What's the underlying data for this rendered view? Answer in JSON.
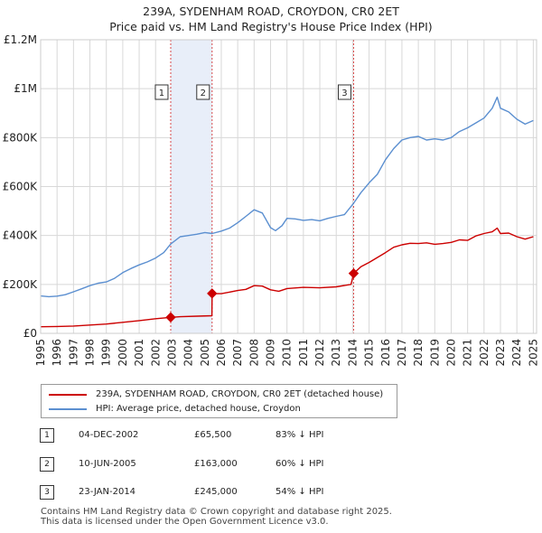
{
  "title_line1": "239A, SYDENHAM ROAD, CROYDON, CR0 2ET",
  "title_line2": "Price paid vs. HM Land Registry's House Price Index (HPI)",
  "chart_data": {
    "type": "line",
    "xlim": [
      1995,
      2025.2
    ],
    "ylim": [
      0,
      1200000
    ],
    "y_ticks": [
      {
        "value": 0,
        "label": "£0"
      },
      {
        "value": 200000,
        "label": "£200K"
      },
      {
        "value": 400000,
        "label": "£400K"
      },
      {
        "value": 600000,
        "label": "£600K"
      },
      {
        "value": 800000,
        "label": "£800K"
      },
      {
        "value": 1000000,
        "label": "£1M"
      },
      {
        "value": 1200000,
        "label": "£1.2M"
      }
    ],
    "x_ticks": [
      "1995",
      "1996",
      "1997",
      "1998",
      "1999",
      "2000",
      "2001",
      "2002",
      "2003",
      "2004",
      "2005",
      "2006",
      "2007",
      "2008",
      "2009",
      "2010",
      "2011",
      "2012",
      "2013",
      "2014",
      "2015",
      "2016",
      "2017",
      "2018",
      "2019",
      "2020",
      "2021",
      "2022",
      "2023",
      "2024",
      "2025"
    ],
    "shaded_regions": [
      [
        2002.92,
        2005.44
      ]
    ],
    "series": [
      {
        "name": "239A, SYDENHAM ROAD, CROYDON, CR0 2ET (detached house)",
        "color": "#cc0000",
        "points": [
          [
            1995.0,
            27000
          ],
          [
            1996.0,
            28000
          ],
          [
            1997.0,
            30000
          ],
          [
            1998.0,
            34000
          ],
          [
            1999.0,
            38000
          ],
          [
            2000.0,
            45000
          ],
          [
            2001.0,
            52000
          ],
          [
            2002.0,
            60000
          ],
          [
            2002.92,
            65500
          ],
          [
            2003.5,
            68000
          ],
          [
            2004.5,
            70000
          ],
          [
            2005.43,
            72000
          ],
          [
            2005.44,
            163000
          ],
          [
            2006.0,
            162000
          ],
          [
            2007.0,
            175000
          ],
          [
            2007.5,
            180000
          ],
          [
            2008.0,
            195000
          ],
          [
            2008.5,
            193000
          ],
          [
            2009.0,
            178000
          ],
          [
            2009.5,
            172000
          ],
          [
            2010.0,
            183000
          ],
          [
            2011.0,
            188000
          ],
          [
            2012.0,
            186000
          ],
          [
            2013.0,
            190000
          ],
          [
            2013.9,
            200000
          ],
          [
            2014.06,
            245000
          ],
          [
            2014.5,
            272000
          ],
          [
            2015.0,
            290000
          ],
          [
            2016.0,
            330000
          ],
          [
            2016.5,
            352000
          ],
          [
            2017.0,
            362000
          ],
          [
            2017.5,
            368000
          ],
          [
            2018.0,
            367000
          ],
          [
            2018.5,
            370000
          ],
          [
            2019.0,
            364000
          ],
          [
            2019.5,
            367000
          ],
          [
            2020.0,
            372000
          ],
          [
            2020.5,
            382000
          ],
          [
            2021.0,
            380000
          ],
          [
            2021.5,
            398000
          ],
          [
            2022.0,
            408000
          ],
          [
            2022.5,
            415000
          ],
          [
            2022.8,
            430000
          ],
          [
            2023.0,
            408000
          ],
          [
            2023.5,
            410000
          ],
          [
            2024.0,
            395000
          ],
          [
            2024.5,
            385000
          ],
          [
            2025.0,
            395000
          ]
        ]
      },
      {
        "name": "HPI: Average price, detached house, Croydon",
        "color": "#5b8fd0",
        "points": [
          [
            1995.0,
            153000
          ],
          [
            1995.5,
            150000
          ],
          [
            1996.0,
            152000
          ],
          [
            1996.5,
            158000
          ],
          [
            1997.0,
            170000
          ],
          [
            1997.5,
            182000
          ],
          [
            1998.0,
            195000
          ],
          [
            1998.5,
            205000
          ],
          [
            1999.0,
            210000
          ],
          [
            1999.5,
            225000
          ],
          [
            2000.0,
            248000
          ],
          [
            2000.5,
            265000
          ],
          [
            2001.0,
            280000
          ],
          [
            2001.5,
            292000
          ],
          [
            2002.0,
            308000
          ],
          [
            2002.5,
            330000
          ],
          [
            2002.92,
            365000
          ],
          [
            2003.5,
            395000
          ],
          [
            2004.0,
            400000
          ],
          [
            2004.5,
            405000
          ],
          [
            2005.0,
            412000
          ],
          [
            2005.44,
            408000
          ],
          [
            2006.0,
            418000
          ],
          [
            2006.5,
            430000
          ],
          [
            2007.0,
            452000
          ],
          [
            2007.5,
            478000
          ],
          [
            2008.0,
            505000
          ],
          [
            2008.5,
            492000
          ],
          [
            2009.0,
            432000
          ],
          [
            2009.3,
            420000
          ],
          [
            2009.7,
            440000
          ],
          [
            2010.0,
            470000
          ],
          [
            2010.5,
            468000
          ],
          [
            2011.0,
            462000
          ],
          [
            2011.5,
            465000
          ],
          [
            2012.0,
            460000
          ],
          [
            2012.5,
            470000
          ],
          [
            2013.0,
            478000
          ],
          [
            2013.5,
            485000
          ],
          [
            2014.06,
            532000
          ],
          [
            2014.5,
            575000
          ],
          [
            2015.0,
            615000
          ],
          [
            2015.5,
            650000
          ],
          [
            2016.0,
            710000
          ],
          [
            2016.5,
            755000
          ],
          [
            2017.0,
            790000
          ],
          [
            2017.5,
            800000
          ],
          [
            2018.0,
            805000
          ],
          [
            2018.5,
            790000
          ],
          [
            2019.0,
            795000
          ],
          [
            2019.5,
            790000
          ],
          [
            2020.0,
            800000
          ],
          [
            2020.5,
            825000
          ],
          [
            2021.0,
            840000
          ],
          [
            2021.5,
            860000
          ],
          [
            2022.0,
            880000
          ],
          [
            2022.5,
            920000
          ],
          [
            2022.8,
            965000
          ],
          [
            2023.0,
            920000
          ],
          [
            2023.5,
            905000
          ],
          [
            2024.0,
            875000
          ],
          [
            2024.5,
            855000
          ],
          [
            2025.0,
            870000
          ]
        ]
      }
    ],
    "sales": [
      {
        "num": "1",
        "year": 2002.92,
        "price": 65500
      },
      {
        "num": "2",
        "year": 2005.44,
        "price": 163000
      },
      {
        "num": "3",
        "year": 2014.06,
        "price": 245000
      }
    ]
  },
  "legend": [
    {
      "label": "239A, SYDENHAM ROAD, CROYDON, CR0 2ET (detached house)",
      "color": "#cc0000"
    },
    {
      "label": "HPI: Average price, detached house, Croydon",
      "color": "#5b8fd0"
    }
  ],
  "sales_table": [
    {
      "num": "1",
      "date": "04-DEC-2002",
      "price": "£65,500",
      "hpi": "83% ↓ HPI"
    },
    {
      "num": "2",
      "date": "10-JUN-2005",
      "price": "£163,000",
      "hpi": "60% ↓ HPI"
    },
    {
      "num": "3",
      "date": "23-JAN-2014",
      "price": "£245,000",
      "hpi": "54% ↓ HPI"
    }
  ],
  "footer_line1": "Contains HM Land Registry data © Crown copyright and database right 2025.",
  "footer_line2": "This data is licensed under the Open Government Licence v3.0."
}
